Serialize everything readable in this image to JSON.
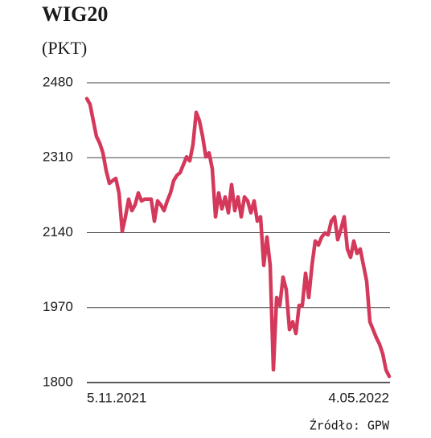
{
  "chart_data": {
    "type": "line",
    "title": "WIG20",
    "subtitle": "(PKT)",
    "source": "Źródło: GPW",
    "categories": [
      "5.11.2021",
      null,
      null,
      null,
      null,
      null,
      null,
      null,
      null,
      null,
      null,
      null,
      null,
      null,
      null,
      null,
      null,
      null,
      null,
      null,
      null,
      null,
      null,
      null,
      null,
      null,
      null,
      null,
      null,
      null,
      null,
      null,
      null,
      null,
      null,
      null,
      null,
      null,
      null,
      null,
      null,
      null,
      null,
      null,
      null,
      null,
      null,
      null,
      null,
      null,
      null,
      null,
      null,
      null,
      null,
      null,
      null,
      null,
      null,
      null,
      null,
      null,
      null,
      null,
      null,
      null,
      null,
      null,
      null,
      null,
      null,
      null,
      null,
      null,
      null,
      null,
      null,
      null,
      null,
      null,
      null,
      null,
      null,
      null,
      null,
      null,
      null,
      null,
      null,
      null,
      null,
      null,
      null,
      null,
      "4.05.2022"
    ],
    "series": [
      {
        "name": "WIG20",
        "color": "#d4385a",
        "values": [
          2444,
          2431,
          2394,
          2358,
          2343,
          2321,
          2281,
          2252,
          2258,
          2263,
          2230,
          2143,
          2176,
          2216,
          2190,
          2203,
          2230,
          2212,
          2216,
          2216,
          2216,
          2166,
          2212,
          2203,
          2190,
          2212,
          2230,
          2258,
          2270,
          2276,
          2294,
          2312,
          2303,
          2340,
          2413,
          2394,
          2358,
          2312,
          2321,
          2285,
          2176,
          2230,
          2194,
          2221,
          2185,
          2249,
          2190,
          2221,
          2176,
          2221,
          2212,
          2185,
          2212,
          2166,
          2176,
          2066,
          2130,
          2066,
          1829,
          1993,
          1975,
          2039,
          2011,
          1920,
          1938,
          1911,
          1975,
          1975,
          2048,
          1993,
          2066,
          2121,
          2112,
          2130,
          2139,
          2135,
          2166,
          2176,
          2124,
          2148,
          2176,
          2103,
          2084,
          2121,
          2093,
          2103,
          2066,
          2030,
          1938,
          1920,
          1902,
          1887,
          1865,
          1829,
          1814
        ]
      }
    ],
    "ylim": [
      1800,
      2480
    ],
    "yticks": [
      1800,
      1970,
      2140,
      2310,
      2480
    ],
    "grid": true
  }
}
